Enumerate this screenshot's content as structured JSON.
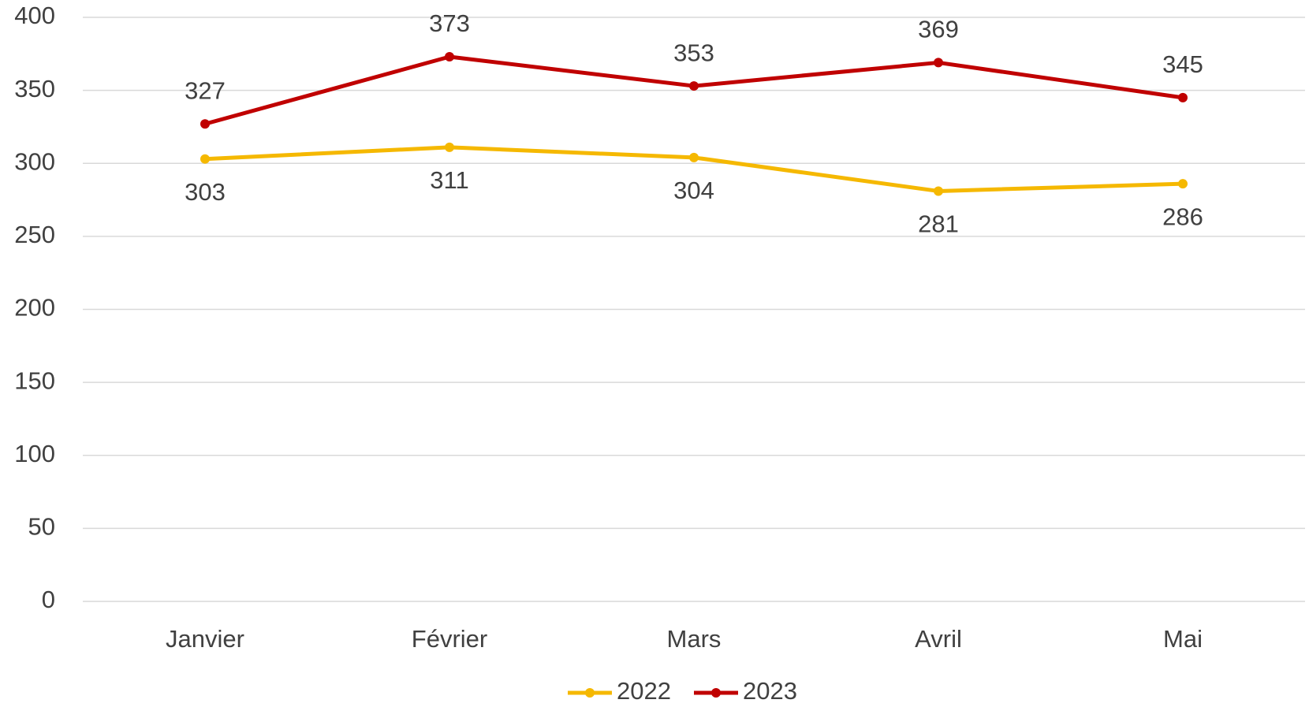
{
  "chart_data": {
    "type": "line",
    "categories": [
      "Janvier",
      "Février",
      "Mars",
      "Avril",
      "Mai"
    ],
    "series": [
      {
        "name": "2022",
        "color": "#f5b800",
        "values": [
          303,
          311,
          304,
          281,
          286
        ],
        "label_position": "below"
      },
      {
        "name": "2023",
        "color": "#c00000",
        "values": [
          327,
          373,
          353,
          369,
          345
        ],
        "label_position": "above"
      }
    ],
    "ylim": [
      0,
      400
    ],
    "yticks": [
      0,
      50,
      100,
      150,
      200,
      250,
      300,
      350,
      400
    ],
    "grid": true,
    "legend": "bottom"
  }
}
